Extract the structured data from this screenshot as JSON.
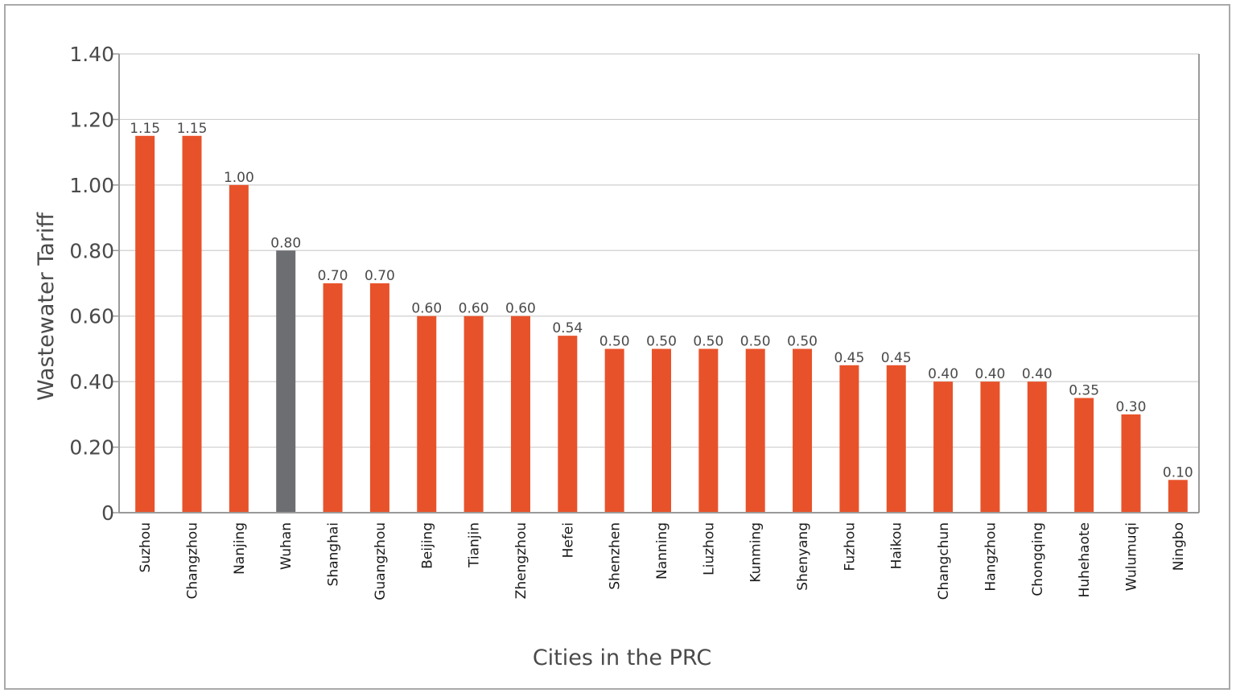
{
  "chart_data": {
    "type": "bar",
    "title": "",
    "xlabel": "Cities in the PRC",
    "ylabel": "Wastewater Tariff",
    "ylim": [
      0,
      1.4
    ],
    "yticks": [
      "0",
      "0.20",
      "0.40",
      "0.60",
      "0.80",
      "1.00",
      "1.20",
      "1.40"
    ],
    "grid": "horizontal",
    "categories": [
      "Suzhou",
      "Changzhou",
      "Nanjing",
      "Wuhan",
      "Shanghai",
      "Guangzhou",
      "Beijing",
      "Tianjin",
      "Zhengzhou",
      "Hefei",
      "Shenzhen",
      "Nanning",
      "Liuzhou",
      "Kunming",
      "Shenyang",
      "Fuzhou",
      "Haikou",
      "Changchun",
      "Hangzhou",
      "Chongqing",
      "Huhehaote",
      "Wulumuqi",
      "Ningbo"
    ],
    "values": [
      1.15,
      1.15,
      1.0,
      0.8,
      0.7,
      0.7,
      0.6,
      0.6,
      0.6,
      0.54,
      0.5,
      0.5,
      0.5,
      0.5,
      0.5,
      0.45,
      0.45,
      0.4,
      0.4,
      0.4,
      0.35,
      0.3,
      0.1
    ],
    "value_labels": [
      "1.15",
      "1.15",
      "1.00",
      "0.80",
      "0.70",
      "0.70",
      "0.60",
      "0.60",
      "0.60",
      "0.54",
      "0.50",
      "0.50",
      "0.50",
      "0.50",
      "0.50",
      "0.45",
      "0.45",
      "0.40",
      "0.40",
      "0.40",
      "0.35",
      "0.30",
      "0.10"
    ],
    "colors": {
      "bar": "#e8522a",
      "highlight": "#6d6e71",
      "grid": "#cfcfcf",
      "axis": "#9a9a9a",
      "frame": "#a9a9a9"
    },
    "highlight_category": "Wuhan"
  }
}
